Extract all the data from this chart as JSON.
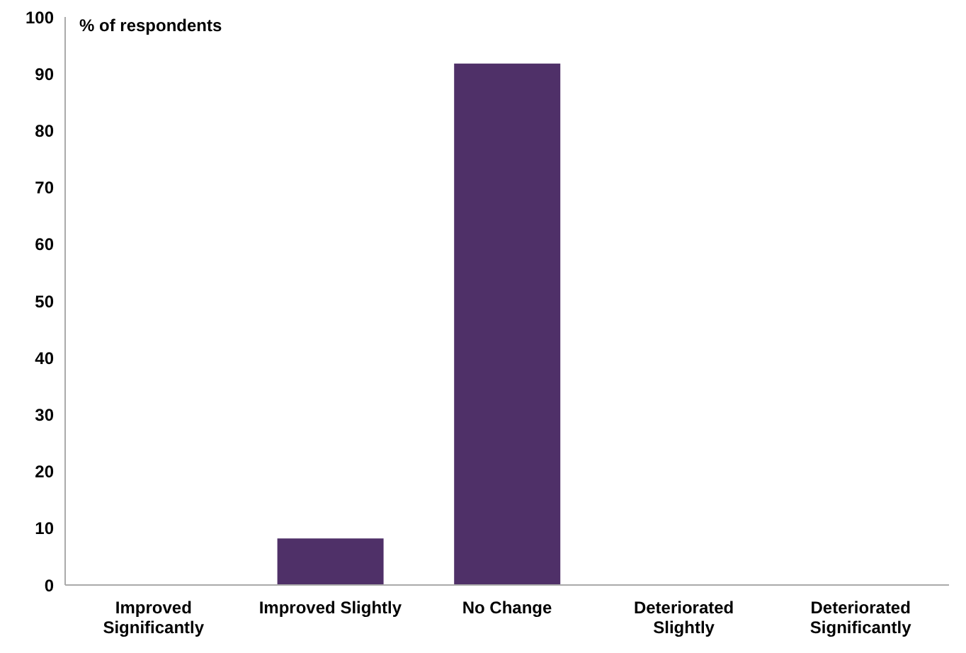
{
  "chart_data": {
    "type": "bar",
    "ylabel": "% of respondents",
    "categories": [
      "Improved Significantly",
      "Improved Slightly",
      "No Change",
      "Deteriorated Slightly",
      "Deteriorated Significantly"
    ],
    "values": [
      0,
      8.2,
      91.8,
      0,
      0
    ],
    "color": "#4f3068",
    "ylim": [
      0,
      100
    ],
    "yticks": [
      0,
      10,
      20,
      30,
      40,
      50,
      60,
      70,
      80,
      90,
      100
    ],
    "grid": false,
    "legend": false
  }
}
